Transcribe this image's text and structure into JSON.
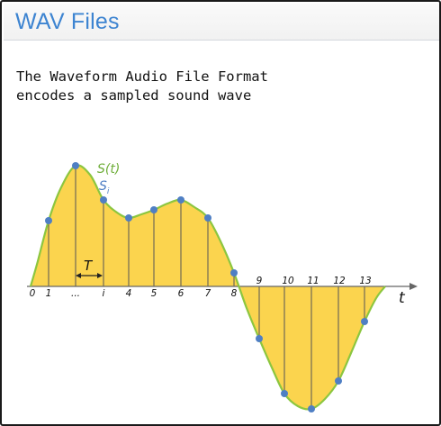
{
  "slide": {
    "title": "WAV Files",
    "intro_lines": [
      "The Waveform Audio File Format",
      "encodes a sampled sound wave"
    ]
  },
  "diagram": {
    "signal_label": "S(t)",
    "sample_label": "S",
    "sample_subscript": "i",
    "period_label": "T",
    "time_axis_label": "t",
    "tick_labels": [
      "0",
      "1",
      "...",
      "i",
      "4",
      "5",
      "6",
      "7",
      "8",
      "9",
      "10",
      "11",
      "12",
      "13"
    ],
    "colors": {
      "wave_stroke": "#8cc63f",
      "area_fill": "#fbd44e",
      "sample_point": "#4f7fc4",
      "signal_label": "#6fae3a",
      "sample_label": "#4f7fc4",
      "axis": "#666666"
    }
  }
}
